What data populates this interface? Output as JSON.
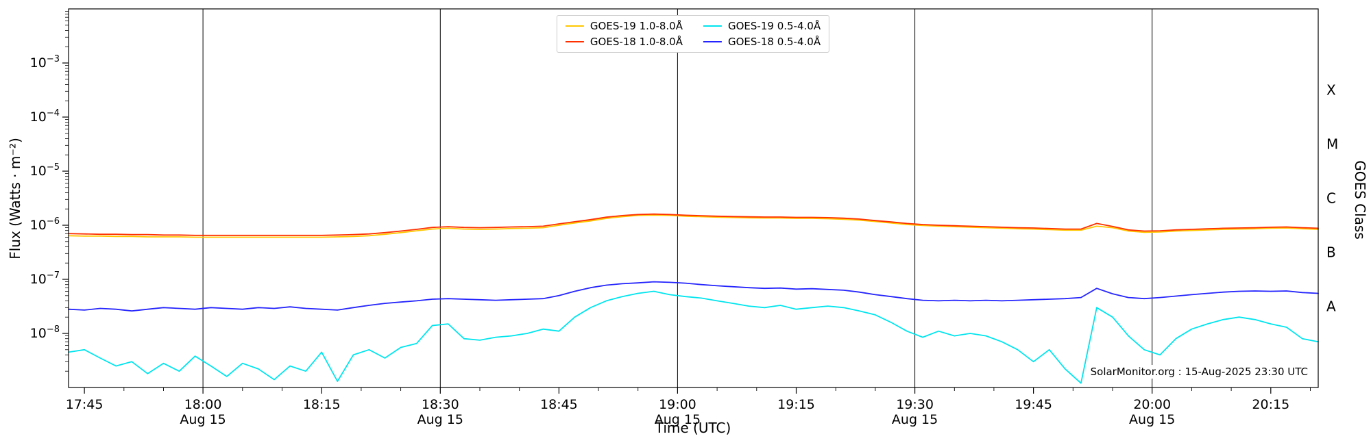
{
  "chart_data": {
    "type": "line",
    "title": "",
    "xlabel": "Time (UTC)",
    "ylabel": "Flux (Watts · m⁻²)",
    "ylabel_right": "GOES Class",
    "annotation": "SolarMonitor.org : 15-Aug-2025 23:30 UTC",
    "yscale": "log",
    "ylim": [
      1e-09,
      0.01
    ],
    "x_unit": "minutes",
    "xlim_minutes": [
      0,
      158
    ],
    "grid": "vertical-date-lines-only",
    "legend_position": "top-center",
    "x_ticks": [
      {
        "t": 2,
        "label": "17:45"
      },
      {
        "t": 17,
        "label": "18:00",
        "date": "Aug 15",
        "gridline": true
      },
      {
        "t": 32,
        "label": "18:15"
      },
      {
        "t": 47,
        "label": "18:30",
        "date": "Aug 15",
        "gridline": true
      },
      {
        "t": 62,
        "label": "18:45"
      },
      {
        "t": 77,
        "label": "19:00",
        "date": "Aug 15",
        "gridline": true
      },
      {
        "t": 92,
        "label": "19:15"
      },
      {
        "t": 107,
        "label": "19:30",
        "date": "Aug 15",
        "gridline": true
      },
      {
        "t": 122,
        "label": "19:45"
      },
      {
        "t": 137,
        "label": "20:00",
        "date": "Aug 15",
        "gridline": true
      },
      {
        "t": 152,
        "label": "20:15"
      }
    ],
    "y_ticks": [
      {
        "v": 0.001,
        "label": "10^-3"
      },
      {
        "v": 0.0001,
        "label": "10^-4"
      },
      {
        "v": 1e-05,
        "label": "10^-5"
      },
      {
        "v": 1e-06,
        "label": "10^-6"
      },
      {
        "v": 1e-07,
        "label": "10^-7"
      },
      {
        "v": 1e-08,
        "label": "10^-8"
      }
    ],
    "goes_classes": [
      {
        "label": "X",
        "v": 0.000316
      },
      {
        "label": "M",
        "v": 3.16e-05
      },
      {
        "label": "C",
        "v": 3.16e-06
      },
      {
        "label": "B",
        "v": 3.16e-07
      },
      {
        "label": "A",
        "v": 3.16e-08
      }
    ],
    "t_minutes": [
      0,
      2,
      4,
      6,
      8,
      10,
      12,
      14,
      16,
      18,
      20,
      22,
      24,
      26,
      28,
      30,
      32,
      34,
      36,
      38,
      40,
      42,
      44,
      46,
      48,
      50,
      52,
      54,
      56,
      58,
      60,
      62,
      64,
      66,
      68,
      70,
      72,
      74,
      76,
      78,
      80,
      82,
      84,
      86,
      88,
      90,
      92,
      94,
      96,
      98,
      100,
      102,
      104,
      106,
      108,
      110,
      112,
      114,
      116,
      118,
      120,
      122,
      124,
      126,
      128,
      130,
      132,
      134,
      136,
      138,
      140,
      142,
      144,
      146,
      148,
      150,
      152,
      154,
      156,
      158
    ],
    "series": [
      {
        "name": "GOES-19 1.0-8.0Å",
        "color": "#ffc800",
        "values": [
          6.4e-07,
          6.3e-07,
          6.3e-07,
          6.2e-07,
          6.2e-07,
          6.1e-07,
          6.1e-07,
          6.1e-07,
          6e-07,
          6e-07,
          6e-07,
          6e-07,
          6e-07,
          6e-07,
          6e-07,
          6e-07,
          6e-07,
          6.1e-07,
          6.2e-07,
          6.4e-07,
          6.8e-07,
          7.3e-07,
          7.9e-07,
          8.5e-07,
          8.8e-07,
          8.5e-07,
          8.4e-07,
          8.5e-07,
          8.7e-07,
          8.8e-07,
          9e-07,
          1e-06,
          1.1e-06,
          1.2e-06,
          1.34e-06,
          1.44e-06,
          1.52e-06,
          1.54e-06,
          1.52e-06,
          1.47e-06,
          1.44e-06,
          1.41e-06,
          1.39e-06,
          1.37e-06,
          1.36e-06,
          1.36e-06,
          1.34e-06,
          1.34e-06,
          1.32e-06,
          1.29e-06,
          1.24e-06,
          1.17e-06,
          1.1e-06,
          1.03e-06,
          9.9e-07,
          9.6e-07,
          9.4e-07,
          9.2e-07,
          9e-07,
          8.8e-07,
          8.6e-07,
          8.5e-07,
          8.3e-07,
          8.1e-07,
          8.1e-07,
          9.6e-07,
          9e-07,
          7.8e-07,
          7.4e-07,
          7.5e-07,
          7.8e-07,
          8e-07,
          8.2e-07,
          8.4e-07,
          8.5e-07,
          8.6e-07,
          8.8e-07,
          8.9e-07,
          8.6e-07,
          8.4e-07
        ]
      },
      {
        "name": "GOES-18 1.0-8.0Å",
        "color": "#ff3000",
        "values": [
          7e-07,
          6.9e-07,
          6.8e-07,
          6.8e-07,
          6.7e-07,
          6.7e-07,
          6.6e-07,
          6.6e-07,
          6.5e-07,
          6.5e-07,
          6.5e-07,
          6.5e-07,
          6.5e-07,
          6.5e-07,
          6.5e-07,
          6.5e-07,
          6.5e-07,
          6.6e-07,
          6.7e-07,
          6.9e-07,
          7.3e-07,
          7.8e-07,
          8.4e-07,
          9.1e-07,
          9.4e-07,
          9.1e-07,
          9e-07,
          9.1e-07,
          9.3e-07,
          9.4e-07,
          9.6e-07,
          1.06e-06,
          1.16e-06,
          1.27e-06,
          1.41e-06,
          1.51e-06,
          1.58e-06,
          1.61e-06,
          1.58e-06,
          1.53e-06,
          1.5e-06,
          1.47e-06,
          1.45e-06,
          1.43e-06,
          1.42e-06,
          1.42e-06,
          1.4e-06,
          1.4e-06,
          1.38e-06,
          1.35e-06,
          1.3e-06,
          1.22e-06,
          1.15e-06,
          1.08e-06,
          1.03e-06,
          1e-06,
          9.8e-07,
          9.6e-07,
          9.4e-07,
          9.2e-07,
          9e-07,
          8.9e-07,
          8.7e-07,
          8.5e-07,
          8.5e-07,
          1.08e-06,
          9.5e-07,
          8.2e-07,
          7.8e-07,
          7.9e-07,
          8.2e-07,
          8.4e-07,
          8.6e-07,
          8.8e-07,
          8.9e-07,
          9e-07,
          9.2e-07,
          9.3e-07,
          9e-07,
          8.8e-07
        ]
      },
      {
        "name": "GOES-19 0.5-4.0Å",
        "color": "#00e5ee",
        "values": [
          4.5e-09,
          5e-09,
          3.5e-09,
          2.5e-09,
          3e-09,
          1.8e-09,
          2.8e-09,
          2e-09,
          3.8e-09,
          2.5e-09,
          1.6e-09,
          2.8e-09,
          2.2e-09,
          1.4e-09,
          2.5e-09,
          2e-09,
          4.5e-09,
          1.3e-09,
          4e-09,
          5e-09,
          3.5e-09,
          5.5e-09,
          6.5e-09,
          1.4e-08,
          1.5e-08,
          8e-09,
          7.5e-09,
          8.5e-09,
          9e-09,
          1e-08,
          1.2e-08,
          1.1e-08,
          2e-08,
          3e-08,
          4e-08,
          4.8e-08,
          5.5e-08,
          6e-08,
          5.2e-08,
          4.8e-08,
          4.5e-08,
          4e-08,
          3.6e-08,
          3.2e-08,
          3e-08,
          3.3e-08,
          2.8e-08,
          3e-08,
          3.2e-08,
          3e-08,
          2.6e-08,
          2.2e-08,
          1.6e-08,
          1.1e-08,
          8.5e-09,
          1.1e-08,
          9e-09,
          1e-08,
          9e-09,
          7e-09,
          5e-09,
          3e-09,
          5e-09,
          2.2e-09,
          1.2e-09,
          3e-08,
          2e-08,
          9e-09,
          5e-09,
          4e-09,
          8e-09,
          1.2e-08,
          1.5e-08,
          1.8e-08,
          2e-08,
          1.8e-08,
          1.5e-08,
          1.3e-08,
          8e-09,
          7e-09
        ]
      },
      {
        "name": "GOES-18 0.5-4.0Å",
        "color": "#2424ff",
        "values": [
          2.8e-08,
          2.7e-08,
          2.9e-08,
          2.8e-08,
          2.6e-08,
          2.8e-08,
          3e-08,
          2.9e-08,
          2.8e-08,
          3e-08,
          2.9e-08,
          2.8e-08,
          3e-08,
          2.9e-08,
          3.1e-08,
          2.9e-08,
          2.8e-08,
          2.7e-08,
          3e-08,
          3.3e-08,
          3.6e-08,
          3.8e-08,
          4e-08,
          4.3e-08,
          4.4e-08,
          4.3e-08,
          4.2e-08,
          4.1e-08,
          4.2e-08,
          4.3e-08,
          4.4e-08,
          5e-08,
          6e-08,
          7e-08,
          7.8e-08,
          8.3e-08,
          8.6e-08,
          9e-08,
          8.8e-08,
          8.5e-08,
          8e-08,
          7.6e-08,
          7.3e-08,
          7e-08,
          6.8e-08,
          6.9e-08,
          6.6e-08,
          6.7e-08,
          6.5e-08,
          6.3e-08,
          5.8e-08,
          5.2e-08,
          4.8e-08,
          4.4e-08,
          4.1e-08,
          4e-08,
          4.1e-08,
          4e-08,
          4.1e-08,
          4e-08,
          4.1e-08,
          4.2e-08,
          4.3e-08,
          4.4e-08,
          4.6e-08,
          6.8e-08,
          5.4e-08,
          4.6e-08,
          4.4e-08,
          4.6e-08,
          4.9e-08,
          5.2e-08,
          5.5e-08,
          5.8e-08,
          6e-08,
          6.1e-08,
          6e-08,
          6.1e-08,
          5.7e-08,
          5.5e-08
        ]
      }
    ]
  }
}
